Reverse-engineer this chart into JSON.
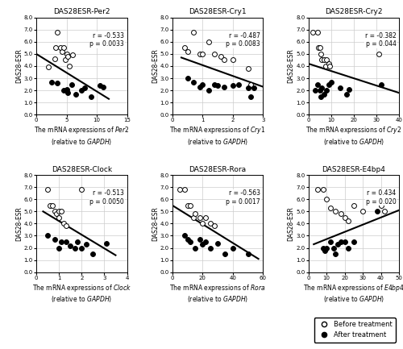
{
  "subplots": [
    {
      "title": "DAS28ESR-Per2",
      "xlabel_gene": "Per2",
      "r_str": "r = -0.533",
      "p_str": "p = 0.0033",
      "xlim": [
        0,
        15
      ],
      "xticks": [
        0,
        5,
        10,
        15
      ],
      "before": [
        [
          2.0,
          3.9
        ],
        [
          3.2,
          5.5
        ],
        [
          3.5,
          6.8
        ],
        [
          4.0,
          5.5
        ],
        [
          4.2,
          5.2
        ],
        [
          4.5,
          5.5
        ],
        [
          4.8,
          4.5
        ],
        [
          5.0,
          5.0
        ],
        [
          5.2,
          4.8
        ],
        [
          5.5,
          4.0
        ],
        [
          6.0,
          4.9
        ],
        [
          3.0,
          4.6
        ]
      ],
      "after": [
        [
          2.5,
          2.7
        ],
        [
          3.5,
          2.6
        ],
        [
          4.5,
          2.0
        ],
        [
          5.0,
          2.1
        ],
        [
          5.2,
          1.8
        ],
        [
          5.8,
          2.5
        ],
        [
          6.5,
          1.7
        ],
        [
          7.5,
          2.0
        ],
        [
          8.0,
          2.2
        ],
        [
          9.0,
          1.5
        ],
        [
          10.5,
          2.4
        ],
        [
          11.0,
          2.3
        ]
      ],
      "line_x": [
        0,
        12
      ],
      "line_y": [
        5.0,
        1.3
      ]
    },
    {
      "title": "DAS28ESR-Cry1",
      "xlabel_gene": "Cry1",
      "r_str": "r = -0.487",
      "p_str": "p = 0.0083",
      "xlim": [
        0,
        3
      ],
      "xticks": [
        0,
        1,
        2,
        3
      ],
      "before": [
        [
          0.4,
          5.5
        ],
        [
          0.5,
          5.2
        ],
        [
          0.7,
          6.8
        ],
        [
          0.9,
          5.0
        ],
        [
          1.0,
          5.0
        ],
        [
          1.2,
          6.0
        ],
        [
          1.4,
          5.0
        ],
        [
          1.6,
          4.8
        ],
        [
          1.7,
          4.5
        ],
        [
          2.0,
          4.5
        ],
        [
          2.5,
          3.8
        ],
        [
          2.6,
          2.5
        ]
      ],
      "after": [
        [
          0.5,
          3.0
        ],
        [
          0.7,
          2.7
        ],
        [
          0.9,
          2.3
        ],
        [
          1.0,
          2.5
        ],
        [
          1.2,
          2.0
        ],
        [
          1.4,
          2.5
        ],
        [
          1.5,
          2.4
        ],
        [
          1.7,
          2.3
        ],
        [
          2.0,
          2.4
        ],
        [
          2.2,
          2.5
        ],
        [
          2.5,
          2.2
        ],
        [
          2.6,
          1.5
        ],
        [
          2.7,
          2.2
        ]
      ],
      "line_x": [
        0.3,
        3.0
      ],
      "line_y": [
        4.7,
        2.3
      ]
    },
    {
      "title": "DAS28ESR-Cry2",
      "xlabel_gene": "Cry2",
      "r_str": "r = -0.382",
      "p_str": "p = 0.044",
      "xlim": [
        0,
        40
      ],
      "xticks": [
        0,
        10,
        20,
        30,
        40
      ],
      "before": [
        [
          2.0,
          6.8
        ],
        [
          4.0,
          6.8
        ],
        [
          4.5,
          5.5
        ],
        [
          5.0,
          5.5
        ],
        [
          5.5,
          5.0
        ],
        [
          6.0,
          4.5
        ],
        [
          7.0,
          4.5
        ],
        [
          7.5,
          4.0
        ],
        [
          8.0,
          4.5
        ],
        [
          9.0,
          4.2
        ],
        [
          9.5,
          4.0
        ],
        [
          31.0,
          5.0
        ]
      ],
      "after": [
        [
          3.0,
          2.0
        ],
        [
          4.0,
          2.5
        ],
        [
          5.0,
          2.0
        ],
        [
          5.5,
          1.5
        ],
        [
          6.0,
          2.2
        ],
        [
          7.0,
          1.7
        ],
        [
          8.0,
          2.0
        ],
        [
          9.0,
          2.5
        ],
        [
          10.0,
          2.7
        ],
        [
          14.0,
          2.2
        ],
        [
          17.0,
          1.7
        ],
        [
          18.0,
          2.1
        ],
        [
          32.0,
          2.5
        ]
      ],
      "line_x": [
        0,
        40
      ],
      "line_y": [
        4.2,
        1.8
      ]
    },
    {
      "title": "DAS28ESR-Clock",
      "xlabel_gene": "Clock",
      "r_str": "r = -0.513",
      "p_str": "p = 0.0050",
      "xlim": [
        0,
        4
      ],
      "xticks": [
        0,
        1,
        2,
        3,
        4
      ],
      "before": [
        [
          0.5,
          6.8
        ],
        [
          0.6,
          5.5
        ],
        [
          0.7,
          5.5
        ],
        [
          0.8,
          5.0
        ],
        [
          0.9,
          4.8
        ],
        [
          1.0,
          5.0
        ],
        [
          1.0,
          4.5
        ],
        [
          1.1,
          5.0
        ],
        [
          1.2,
          4.0
        ],
        [
          1.3,
          3.8
        ],
        [
          2.0,
          6.8
        ]
      ],
      "after": [
        [
          0.5,
          3.0
        ],
        [
          0.8,
          2.7
        ],
        [
          1.0,
          2.0
        ],
        [
          1.1,
          2.5
        ],
        [
          1.3,
          2.5
        ],
        [
          1.5,
          2.2
        ],
        [
          1.7,
          2.0
        ],
        [
          1.8,
          2.5
        ],
        [
          2.0,
          2.0
        ],
        [
          2.2,
          2.3
        ],
        [
          2.5,
          1.5
        ],
        [
          3.1,
          2.4
        ]
      ],
      "line_x": [
        0.3,
        3.5
      ],
      "line_y": [
        5.0,
        1.4
      ]
    },
    {
      "title": "DAS28ESR-Rora",
      "xlabel_gene": "Rora",
      "r_str": "r = -0.563",
      "p_str": "p = 0.0017",
      "xlim": [
        0,
        60
      ],
      "xticks": [
        0,
        20,
        40,
        60
      ],
      "before": [
        [
          5.0,
          6.8
        ],
        [
          8.0,
          6.8
        ],
        [
          10.0,
          5.5
        ],
        [
          12.0,
          5.5
        ],
        [
          14.0,
          4.5
        ],
        [
          15.0,
          4.8
        ],
        [
          18.0,
          4.5
        ],
        [
          20.0,
          4.0
        ],
        [
          22.0,
          4.5
        ],
        [
          25.0,
          4.0
        ],
        [
          28.0,
          3.8
        ]
      ],
      "after": [
        [
          8.0,
          3.0
        ],
        [
          10.0,
          2.7
        ],
        [
          12.0,
          2.5
        ],
        [
          15.0,
          2.0
        ],
        [
          18.0,
          2.7
        ],
        [
          20.0,
          2.3
        ],
        [
          22.0,
          2.5
        ],
        [
          25.0,
          2.0
        ],
        [
          30.0,
          2.4
        ],
        [
          35.0,
          1.5
        ],
        [
          40.0,
          2.0
        ],
        [
          50.0,
          1.5
        ]
      ],
      "line_x": [
        0,
        57
      ],
      "line_y": [
        5.5,
        1.1
      ]
    },
    {
      "title": "DAS28ESR-E4bp4",
      "xlabel_gene": "E4bp4",
      "r_str": "r = 0.434",
      "p_str": "p = 0.020",
      "xlim": [
        0,
        50
      ],
      "xticks": [
        0,
        10,
        20,
        30,
        40,
        50
      ],
      "before": [
        [
          5.0,
          6.8
        ],
        [
          8.0,
          6.8
        ],
        [
          10.0,
          6.0
        ],
        [
          12.0,
          5.3
        ],
        [
          15.0,
          5.0
        ],
        [
          18.0,
          4.8
        ],
        [
          20.0,
          4.5
        ],
        [
          22.0,
          4.2
        ],
        [
          25.0,
          5.5
        ],
        [
          30.0,
          5.0
        ],
        [
          40.0,
          5.5
        ],
        [
          42.0,
          5.0
        ]
      ],
      "after": [
        [
          8.0,
          2.0
        ],
        [
          9.0,
          1.8
        ],
        [
          10.0,
          2.0
        ],
        [
          12.0,
          2.5
        ],
        [
          14.0,
          2.0
        ],
        [
          15.0,
          1.5
        ],
        [
          16.0,
          2.3
        ],
        [
          18.0,
          2.5
        ],
        [
          20.0,
          2.5
        ],
        [
          22.0,
          2.0
        ],
        [
          25.0,
          2.5
        ],
        [
          38.0,
          5.0
        ]
      ],
      "line_x": [
        3,
        50
      ],
      "line_y": [
        2.3,
        5.1
      ]
    }
  ],
  "ylim": [
    0.0,
    8.0
  ],
  "yticks": [
    0.0,
    1.0,
    2.0,
    3.0,
    4.0,
    5.0,
    6.0,
    7.0,
    8.0
  ],
  "ytick_labels": [
    "0.0",
    "1.0",
    "2.0",
    "3.0",
    "4.0",
    "5.0",
    "6.0",
    "7.0",
    "8.0"
  ],
  "ylabel": "DAS28-ESR",
  "line_color": "black",
  "background_color": "white",
  "grid_color": "#cccccc"
}
